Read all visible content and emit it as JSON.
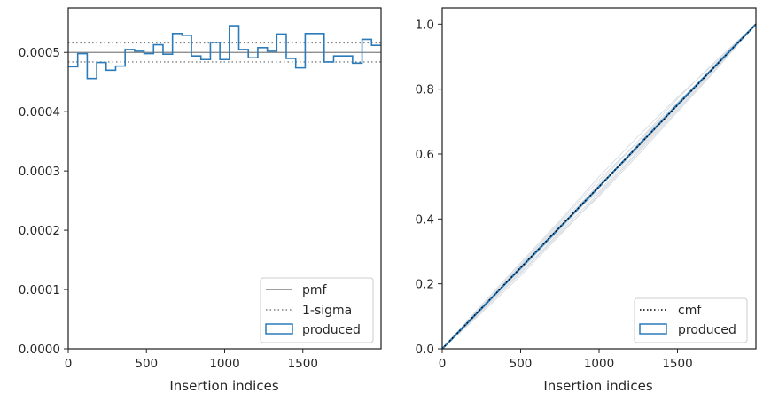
{
  "chart_data": [
    {
      "type": "histogram",
      "xlabel": "Insertion indices",
      "ylabel": "",
      "xlim": [
        0,
        2000
      ],
      "ylim": [
        0,
        0.000575
      ],
      "xticks": [
        0,
        500,
        1000,
        1500
      ],
      "xtick_labels": [
        "0",
        "500",
        "1000",
        "1500"
      ],
      "yticks": [
        0,
        0.0001,
        0.0002,
        0.0003,
        0.0004,
        0.0005
      ],
      "ytick_labels": [
        "0.0000",
        "0.0001",
        "0.0002",
        "0.0003",
        "0.0004",
        "0.0005"
      ],
      "pmf": 0.0005,
      "sigma_upper": 0.000516,
      "sigma_lower": 0.000484,
      "bin_width": 60.6,
      "produced": [
        0.000476,
        0.000498,
        0.000456,
        0.000483,
        0.00047,
        0.000477,
        0.000505,
        0.000502,
        0.000498,
        0.000513,
        0.000497,
        0.000532,
        0.000529,
        0.000494,
        0.000488,
        0.000517,
        0.000488,
        0.000545,
        0.000505,
        0.000491,
        0.000508,
        0.000502,
        0.000531,
        0.00049,
        0.000474,
        0.000532,
        0.000532,
        0.000484,
        0.000494,
        0.000494,
        0.000482,
        0.000522,
        0.000512
      ],
      "legend_position": "lower-right",
      "legend": [
        {
          "label": "pmf",
          "style": "solid",
          "color": "#808080"
        },
        {
          "label": "1-sigma",
          "style": "dotted",
          "color": "#808080"
        },
        {
          "label": "produced",
          "style": "patch",
          "color": "#2b7bba"
        }
      ]
    },
    {
      "type": "line",
      "xlabel": "Insertion indices",
      "ylabel": "",
      "xlim": [
        0,
        2000
      ],
      "ylim": [
        0,
        1.05
      ],
      "xticks": [
        0,
        500,
        1000,
        1500
      ],
      "xtick_labels": [
        "0",
        "500",
        "1000",
        "1500"
      ],
      "yticks": [
        0,
        0.2,
        0.4,
        0.6,
        0.8,
        1.0
      ],
      "ytick_labels": [
        "0.0",
        "0.2",
        "0.4",
        "0.6",
        "0.8",
        "1.0"
      ],
      "cmf": {
        "x": [
          0,
          2000
        ],
        "y": [
          0,
          1
        ]
      },
      "produced": {
        "x": [
          0,
          250,
          500,
          750,
          1000,
          1250,
          1500,
          1750,
          2000
        ],
        "y": [
          0,
          0.124,
          0.249,
          0.374,
          0.499,
          0.626,
          0.752,
          0.876,
          1.0
        ]
      },
      "background_lines": [
        {
          "x": [
            0,
            250,
            500,
            750,
            1000,
            1250,
            1500,
            1750,
            2000
          ],
          "y": [
            0,
            0.13,
            0.26,
            0.39,
            0.52,
            0.64,
            0.77,
            0.89,
            1.0
          ]
        },
        {
          "x": [
            0,
            250,
            500,
            750,
            1000,
            1250,
            1500,
            1750,
            2000
          ],
          "y": [
            0,
            0.115,
            0.235,
            0.36,
            0.48,
            0.61,
            0.74,
            0.87,
            1.0
          ]
        },
        {
          "x": [
            0,
            250,
            500,
            750,
            1000,
            1250,
            1500,
            1750,
            2000
          ],
          "y": [
            0,
            0.12,
            0.255,
            0.385,
            0.505,
            0.615,
            0.745,
            0.88,
            1.0
          ]
        },
        {
          "x": [
            0,
            250,
            500,
            750,
            1000,
            1250,
            1500,
            1750,
            2000
          ],
          "y": [
            0,
            0.127,
            0.245,
            0.365,
            0.495,
            0.632,
            0.76,
            0.872,
            1.0
          ]
        },
        {
          "x": [
            0,
            250,
            500,
            750,
            1000,
            1250,
            1500,
            1750,
            2000
          ],
          "y": [
            0,
            0.11,
            0.225,
            0.35,
            0.475,
            0.605,
            0.735,
            0.865,
            1.0
          ]
        },
        {
          "x": [
            0,
            250,
            500,
            750,
            1000,
            1250,
            1500,
            1750,
            2000
          ],
          "y": [
            0,
            0.135,
            0.265,
            0.395,
            0.53,
            0.655,
            0.775,
            0.885,
            1.0
          ]
        },
        {
          "x": [
            0,
            250,
            500,
            750,
            1000,
            1250,
            1500,
            1750,
            2000
          ],
          "y": [
            0,
            0.118,
            0.24,
            0.37,
            0.51,
            0.64,
            0.758,
            0.878,
            1.0
          ]
        },
        {
          "x": [
            0,
            250,
            500,
            750,
            1000,
            1250,
            1500,
            1750,
            2000
          ],
          "y": [
            0,
            0.125,
            0.25,
            0.38,
            0.485,
            0.62,
            0.75,
            0.875,
            1.0
          ]
        },
        {
          "x": [
            0,
            250,
            500,
            750,
            1000,
            1250,
            1500,
            1750,
            2000
          ],
          "y": [
            0,
            0.122,
            0.258,
            0.372,
            0.498,
            0.628,
            0.748,
            0.87,
            1.0
          ]
        },
        {
          "x": [
            0,
            250,
            500,
            750,
            1000,
            1250,
            1500,
            1750,
            2000
          ],
          "y": [
            0,
            0.116,
            0.232,
            0.355,
            0.47,
            0.598,
            0.73,
            0.862,
            1.0
          ]
        }
      ],
      "legend_position": "lower-right",
      "legend": [
        {
          "label": "cmf",
          "style": "dotted",
          "color": "#000000"
        },
        {
          "label": "produced",
          "style": "patch",
          "color": "#2b7bba"
        }
      ]
    }
  ]
}
